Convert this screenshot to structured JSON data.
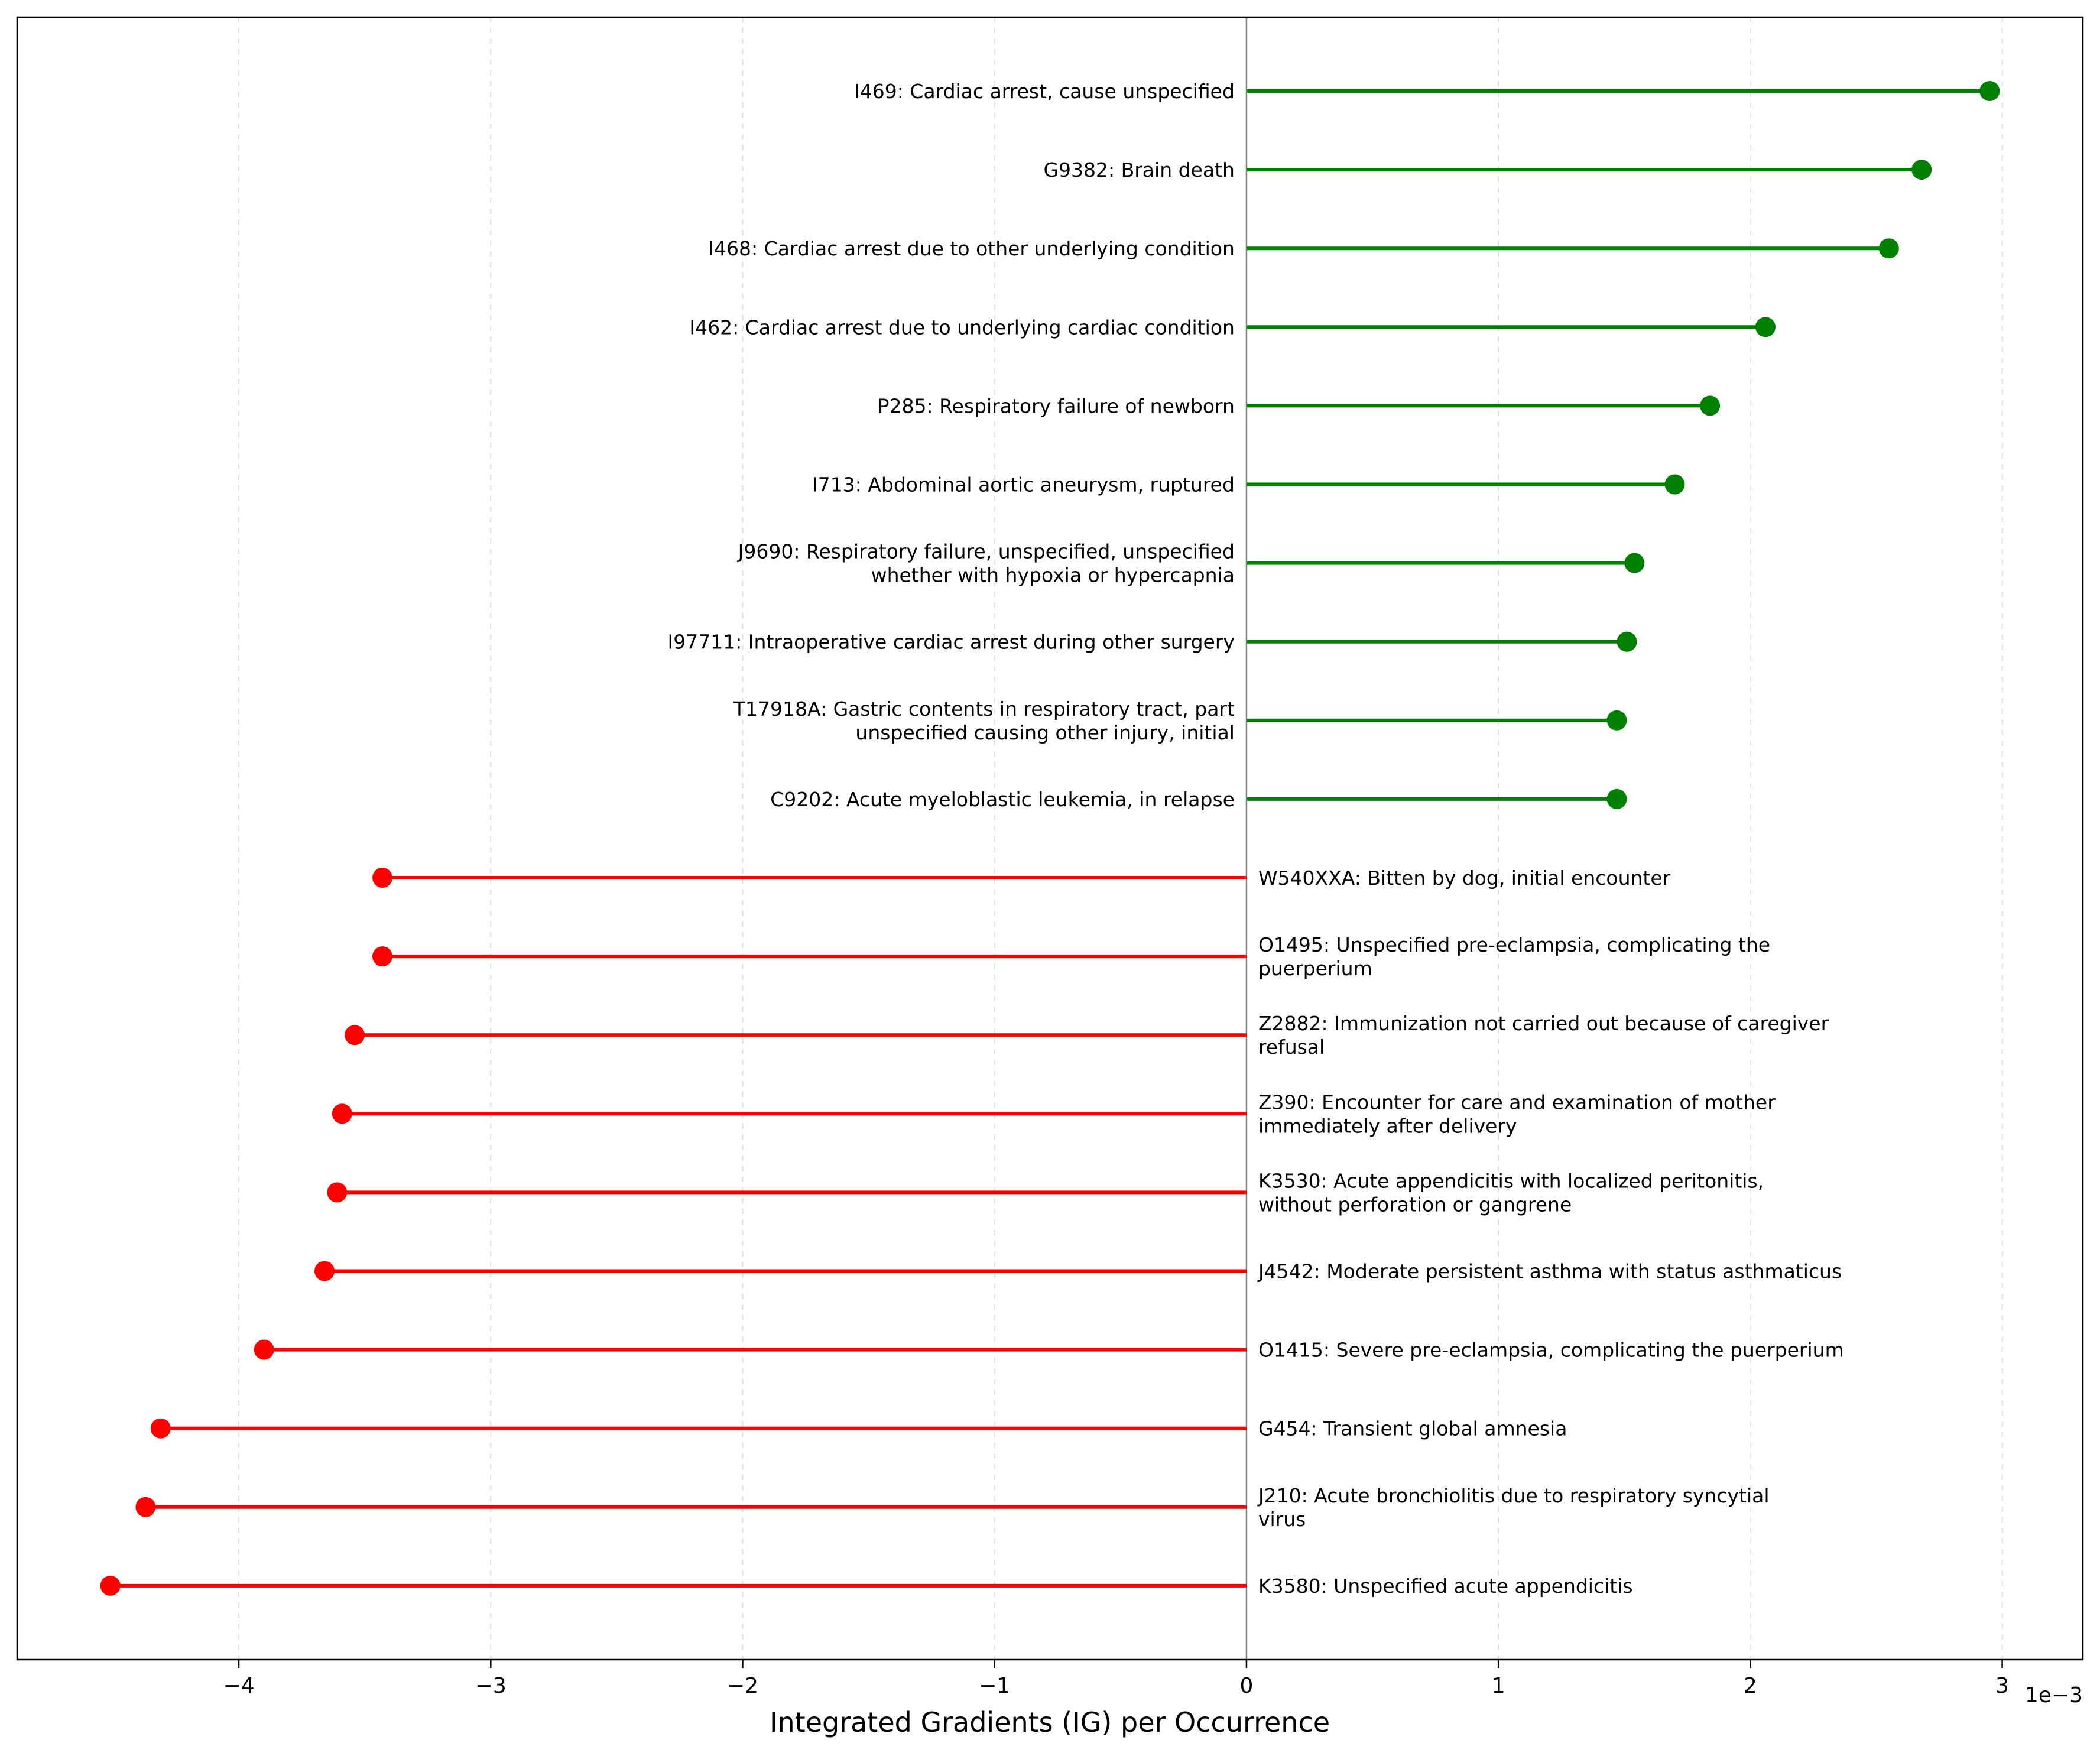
{
  "chart_data": {
    "type": "lollipop",
    "xlabel": "Integrated Gradients (IG) per Occurrence",
    "x_scale_label": "1e−3",
    "xlim": [
      -4.88,
      3.32
    ],
    "xticks": [
      -4,
      -3,
      -2,
      -1,
      0,
      1,
      2,
      3
    ],
    "xtick_labels": [
      "−4",
      "−3",
      "−2",
      "−1",
      "0",
      "1",
      "2",
      "3"
    ],
    "grid": "vertical dashed",
    "colors": {
      "positive": "#008000",
      "negative": "#ff0000",
      "zero_line": "#808080"
    },
    "items": [
      {
        "lines": [
          "I469: Cardiac arrest, cause unspecified"
        ],
        "value": 2.95
      },
      {
        "lines": [
          "G9382: Brain death"
        ],
        "value": 2.68
      },
      {
        "lines": [
          "I468: Cardiac arrest due to other underlying condition"
        ],
        "value": 2.55
      },
      {
        "lines": [
          "I462: Cardiac arrest due to underlying cardiac condition"
        ],
        "value": 2.06
      },
      {
        "lines": [
          "P285: Respiratory failure of newborn"
        ],
        "value": 1.84
      },
      {
        "lines": [
          "I713: Abdominal aortic aneurysm, ruptured"
        ],
        "value": 1.7
      },
      {
        "lines": [
          "J9690: Respiratory failure, unspecified, unspecified",
          "whether with hypoxia or hypercapnia"
        ],
        "value": 1.54
      },
      {
        "lines": [
          "I97711: Intraoperative cardiac arrest during other surgery"
        ],
        "value": 1.51
      },
      {
        "lines": [
          "T17918A: Gastric contents in respiratory tract, part",
          "unspecified causing other injury, initial"
        ],
        "value": 1.47
      },
      {
        "lines": [
          "C9202: Acute myeloblastic leukemia, in relapse"
        ],
        "value": 1.47
      },
      {
        "lines": [
          "W540XXA: Bitten by dog, initial encounter"
        ],
        "value": -3.43
      },
      {
        "lines": [
          "O1495: Unspecified pre-eclampsia, complicating the",
          "puerperium"
        ],
        "value": -3.43
      },
      {
        "lines": [
          "Z2882: Immunization not carried out because of caregiver",
          "refusal"
        ],
        "value": -3.54
      },
      {
        "lines": [
          "Z390: Encounter for care and examination of mother",
          "immediately after delivery"
        ],
        "value": -3.59
      },
      {
        "lines": [
          "K3530: Acute appendicitis with localized peritonitis,",
          "without perforation or gangrene"
        ],
        "value": -3.61
      },
      {
        "lines": [
          "J4542: Moderate persistent asthma with status asthmaticus"
        ],
        "value": -3.66
      },
      {
        "lines": [
          "O1415: Severe pre-eclampsia, complicating the puerperium"
        ],
        "value": -3.9
      },
      {
        "lines": [
          "G454: Transient global amnesia"
        ],
        "value": -4.31
      },
      {
        "lines": [
          "J210: Acute bronchiolitis due to respiratory syncytial",
          "virus"
        ],
        "value": -4.37
      },
      {
        "lines": [
          "K3580: Unspecified acute appendicitis"
        ],
        "value": -4.51
      }
    ]
  }
}
